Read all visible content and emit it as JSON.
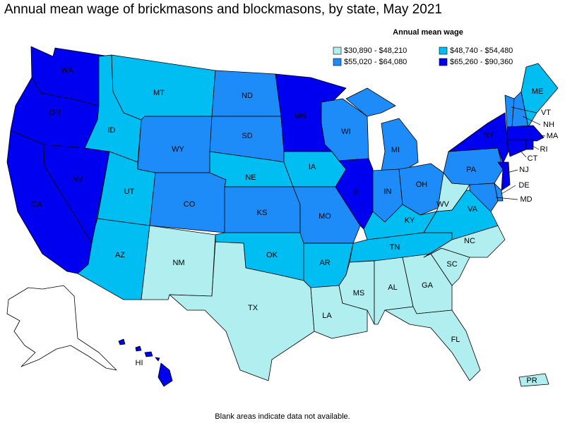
{
  "title": "Annual mean wage of brickmasons and blockmasons, by state, May 2021",
  "legend": {
    "title": "Annual mean wage",
    "items": [
      {
        "label": "$30,890 - $48,210",
        "color": "#b0eef0"
      },
      {
        "label": "$48,740 - $54,480",
        "color": "#00bdf2"
      },
      {
        "label": "$55,020 - $64,080",
        "color": "#1e8cf8"
      },
      {
        "label": "$65,260 - $90,360",
        "color": "#0000f0"
      }
    ]
  },
  "states": [
    {
      "label": "WA",
      "color": "#0000f0"
    },
    {
      "label": "OR",
      "color": "#0000f0"
    },
    {
      "label": "CA",
      "color": "#0000f0"
    },
    {
      "label": "NV",
      "color": "#0000f0"
    },
    {
      "label": "ID",
      "color": "#00bdf2"
    },
    {
      "label": "MT",
      "color": "#00bdf2"
    },
    {
      "label": "WY",
      "color": "#1e8cf8"
    },
    {
      "label": "UT",
      "color": "#00bdf2"
    },
    {
      "label": "CO",
      "color": "#1e8cf8"
    },
    {
      "label": "AZ",
      "color": "#00bdf2"
    },
    {
      "label": "NM",
      "color": "#b0eef0"
    },
    {
      "label": "ND",
      "color": "#1e8cf8"
    },
    {
      "label": "SD",
      "color": "#1e8cf8"
    },
    {
      "label": "NE",
      "color": "#00bdf2"
    },
    {
      "label": "KS",
      "color": "#1e8cf8"
    },
    {
      "label": "OK",
      "color": "#00bdf2"
    },
    {
      "label": "TX",
      "color": "#b0eef0"
    },
    {
      "label": "MN",
      "color": "#0000f0"
    },
    {
      "label": "IA",
      "color": "#00bdf2"
    },
    {
      "label": "MO",
      "color": "#1e8cf8"
    },
    {
      "label": "AR",
      "color": "#00bdf2"
    },
    {
      "label": "LA",
      "color": "#b0eef0"
    },
    {
      "label": "WI",
      "color": "#1e8cf8"
    },
    {
      "label": "IL",
      "color": "#0000f0"
    },
    {
      "label": "MI",
      "color": "#1e8cf8"
    },
    {
      "label": "IN",
      "color": "#1e8cf8"
    },
    {
      "label": "OH",
      "color": "#1e8cf8"
    },
    {
      "label": "KY",
      "color": "#00bdf2"
    },
    {
      "label": "TN",
      "color": "#00bdf2"
    },
    {
      "label": "MS",
      "color": "#b0eef0"
    },
    {
      "label": "AL",
      "color": "#b0eef0"
    },
    {
      "label": "GA",
      "color": "#b0eef0"
    },
    {
      "label": "FL",
      "color": "#b0eef0"
    },
    {
      "label": "SC",
      "color": "#b0eef0"
    },
    {
      "label": "NC",
      "color": "#b0eef0"
    },
    {
      "label": "VA",
      "color": "#00bdf2"
    },
    {
      "label": "WV",
      "color": "#b0eef0"
    },
    {
      "label": "PA",
      "color": "#1e8cf8"
    },
    {
      "label": "NY",
      "color": "#0000f0"
    },
    {
      "label": "VT",
      "color": "#1e8cf8"
    },
    {
      "label": "NH",
      "color": "#1e8cf8"
    },
    {
      "label": "ME",
      "color": "#00bdf2"
    },
    {
      "label": "MA",
      "color": "#0000f0"
    },
    {
      "label": "CT",
      "color": "#0000f0"
    },
    {
      "label": "RI",
      "color": "#0000f0"
    },
    {
      "label": "NJ",
      "color": "#0000f0"
    },
    {
      "label": "DE",
      "color": "#1e8cf8"
    },
    {
      "label": "MD",
      "color": "#1e8cf8"
    },
    {
      "label": "HI",
      "color": "#0000f0"
    },
    {
      "label": "PR",
      "color": "#b0eef0"
    }
  ],
  "footnote": "Blank areas indicate data not available."
}
